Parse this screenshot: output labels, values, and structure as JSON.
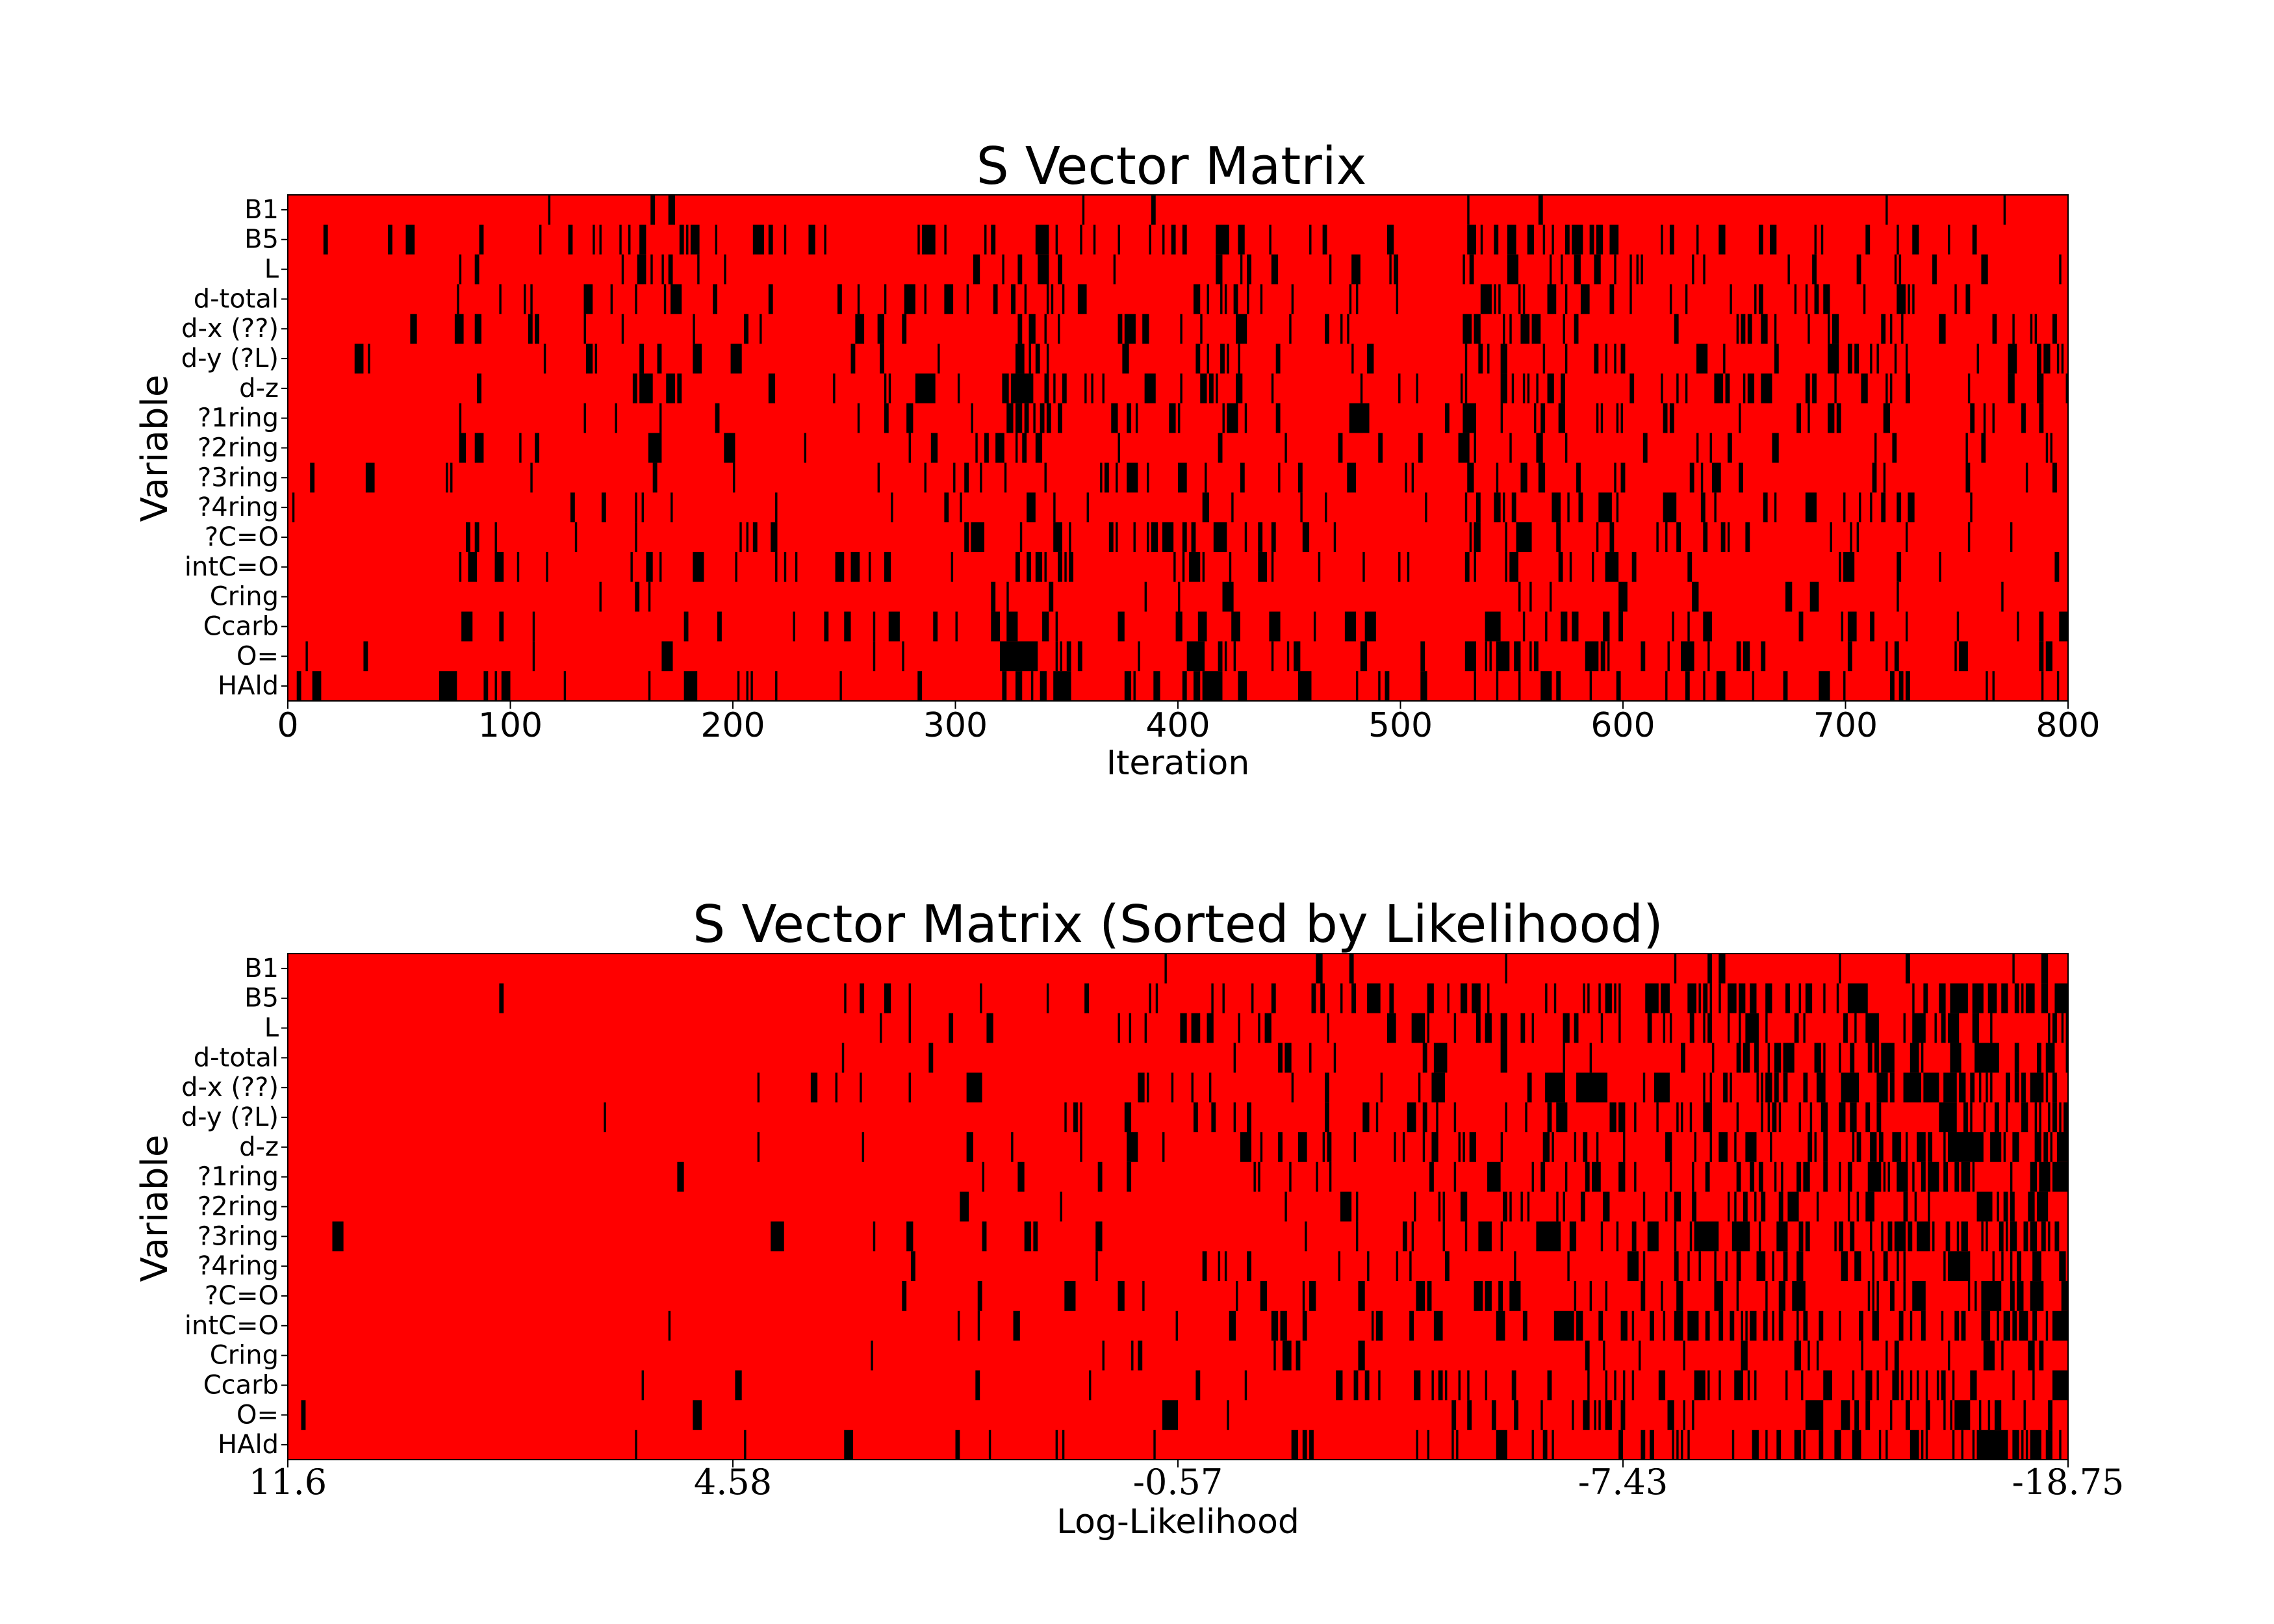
{
  "colors": {
    "off": "#ff0000",
    "on": "#000000",
    "frame": "#000000"
  },
  "chart_data": [
    {
      "type": "heatmap",
      "title": "S Vector Matrix",
      "xlabel": "Iteration",
      "ylabel": "Variable",
      "xlim": [
        0,
        800
      ],
      "x_ticks": [
        "0",
        "100",
        "200",
        "300",
        "400",
        "500",
        "600",
        "700",
        "800"
      ],
      "rows": [
        "B1",
        "B5",
        "L",
        "d-total",
        "d-x (??)",
        "d-y (?L)",
        "d-z",
        "?1ring",
        "?2ring",
        "?3ring",
        "?4ring",
        "?C=O",
        "intC=O",
        "Cring",
        "Ccarb",
        "O=",
        "HAld"
      ],
      "values": [
        "binary 0/1 matrix: 17 variables x 800 iterations; 1 drawn black, 0 drawn red; black density is highest around iterations 320-350, 400-430 and 530-600, and lowest in the first 100 iterations"
      ],
      "legend": "none"
    },
    {
      "type": "heatmap",
      "title": "S Vector Matrix (Sorted by Likelihood)",
      "xlabel": "Log-Likelihood",
      "ylabel": "Variable",
      "x_ticks": [
        "11.6",
        "4.58",
        "-0.57",
        "-7.43",
        "-18.75"
      ],
      "rows": [
        "B1",
        "B5",
        "L",
        "d-total",
        "d-x (??)",
        "d-y (?L)",
        "d-z",
        "?1ring",
        "?2ring",
        "?3ring",
        "?4ring",
        "?C=O",
        "intC=O",
        "Cring",
        "Ccarb",
        "O=",
        "HAld"
      ],
      "values": [
        "same 17 x 800 binary matrix with columns sorted by log-likelihood from 11.6 (left) to -18.75 (right); black density rises steadily to the right and is densest near the lowest likelihood"
      ],
      "legend": "none"
    }
  ]
}
